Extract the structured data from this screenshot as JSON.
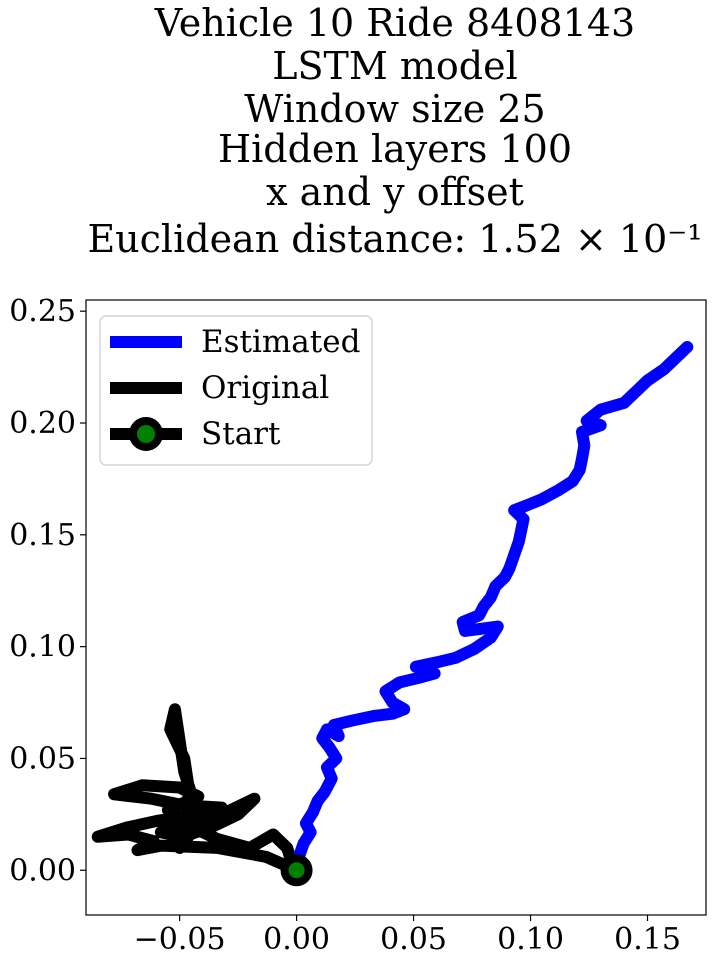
{
  "chart_data": {
    "type": "line",
    "title_lines": [
      "Vehicle 10 Ride 8408143",
      "LSTM model",
      "Window size 25",
      "Hidden layers 100",
      "x and y offset",
      "Euclidean distance: 1.52 × 10⁻¹"
    ],
    "xlabel": "",
    "ylabel": "",
    "xlim": [
      -0.09,
      0.175
    ],
    "ylim": [
      -0.02,
      0.255
    ],
    "x_ticks": [
      -0.05,
      0.0,
      0.05,
      0.1,
      0.15
    ],
    "x_tick_labels": [
      "−0.05",
      "0.00",
      "0.05",
      "0.10",
      "0.15"
    ],
    "y_ticks": [
      0.0,
      0.05,
      0.1,
      0.15,
      0.2,
      0.25
    ],
    "y_tick_labels": [
      "0.00",
      "0.05",
      "0.10",
      "0.15",
      "0.20",
      "0.25"
    ],
    "grid": false,
    "legend_position": "top-left",
    "series": [
      {
        "name": "Estimated",
        "color": "#0000ff",
        "points": [
          [
            0.0,
            0.0
          ],
          [
            0.001,
            0.006
          ],
          [
            0.003,
            0.012
          ],
          [
            0.006,
            0.017
          ],
          [
            0.004,
            0.021
          ],
          [
            0.007,
            0.026
          ],
          [
            0.009,
            0.031
          ],
          [
            0.012,
            0.035
          ],
          [
            0.015,
            0.041
          ],
          [
            0.013,
            0.046
          ],
          [
            0.017,
            0.05
          ],
          [
            0.014,
            0.055
          ],
          [
            0.011,
            0.059
          ],
          [
            0.013,
            0.063
          ],
          [
            0.018,
            0.06
          ],
          [
            0.016,
            0.065
          ],
          [
            0.024,
            0.067
          ],
          [
            0.033,
            0.069
          ],
          [
            0.041,
            0.07
          ],
          [
            0.046,
            0.072
          ],
          [
            0.041,
            0.075
          ],
          [
            0.038,
            0.08
          ],
          [
            0.044,
            0.084
          ],
          [
            0.052,
            0.086
          ],
          [
            0.059,
            0.088
          ],
          [
            0.051,
            0.091
          ],
          [
            0.06,
            0.093
          ],
          [
            0.068,
            0.095
          ],
          [
            0.076,
            0.099
          ],
          [
            0.083,
            0.104
          ],
          [
            0.086,
            0.109
          ],
          [
            0.072,
            0.107
          ],
          [
            0.071,
            0.111
          ],
          [
            0.078,
            0.114
          ],
          [
            0.08,
            0.118
          ],
          [
            0.083,
            0.122
          ],
          [
            0.085,
            0.127
          ],
          [
            0.089,
            0.131
          ],
          [
            0.091,
            0.135
          ],
          [
            0.093,
            0.141
          ],
          [
            0.095,
            0.147
          ],
          [
            0.096,
            0.152
          ],
          [
            0.097,
            0.157
          ],
          [
            0.093,
            0.161
          ],
          [
            0.098,
            0.163
          ],
          [
            0.105,
            0.166
          ],
          [
            0.112,
            0.17
          ],
          [
            0.118,
            0.174
          ],
          [
            0.121,
            0.179
          ],
          [
            0.122,
            0.184
          ],
          [
            0.123,
            0.19
          ],
          [
            0.122,
            0.196
          ],
          [
            0.13,
            0.199
          ],
          [
            0.124,
            0.201
          ],
          [
            0.13,
            0.206
          ],
          [
            0.14,
            0.209
          ],
          [
            0.145,
            0.214
          ],
          [
            0.15,
            0.219
          ],
          [
            0.157,
            0.224
          ],
          [
            0.162,
            0.229
          ],
          [
            0.167,
            0.234
          ]
        ]
      },
      {
        "name": "Original",
        "color": "#000000",
        "points": [
          [
            0.0,
            0.0
          ],
          [
            -0.013,
            0.006
          ],
          [
            -0.034,
            0.01
          ],
          [
            -0.058,
            0.011
          ],
          [
            -0.068,
            0.009
          ],
          [
            -0.061,
            0.013
          ],
          [
            -0.072,
            0.016
          ],
          [
            -0.085,
            0.015
          ],
          [
            -0.073,
            0.019
          ],
          [
            -0.06,
            0.022
          ],
          [
            -0.048,
            0.024
          ],
          [
            -0.041,
            0.02
          ],
          [
            -0.044,
            0.031
          ],
          [
            -0.048,
            0.044
          ],
          [
            -0.05,
            0.058
          ],
          [
            -0.052,
            0.072
          ],
          [
            -0.054,
            0.063
          ],
          [
            -0.048,
            0.05
          ],
          [
            -0.046,
            0.036
          ],
          [
            -0.047,
            0.022
          ],
          [
            -0.05,
            0.01
          ],
          [
            -0.044,
            0.018
          ],
          [
            -0.036,
            0.023
          ],
          [
            -0.028,
            0.027
          ],
          [
            -0.018,
            0.032
          ],
          [
            -0.025,
            0.025
          ],
          [
            -0.037,
            0.019
          ],
          [
            -0.049,
            0.015
          ],
          [
            -0.058,
            0.017
          ],
          [
            -0.045,
            0.024
          ],
          [
            -0.032,
            0.028
          ],
          [
            -0.048,
            0.029
          ],
          [
            -0.062,
            0.032
          ],
          [
            -0.078,
            0.034
          ],
          [
            -0.066,
            0.038
          ],
          [
            -0.05,
            0.037
          ],
          [
            -0.042,
            0.033
          ],
          [
            -0.055,
            0.027
          ],
          [
            -0.046,
            0.02
          ],
          [
            -0.034,
            0.014
          ],
          [
            -0.02,
            0.01
          ],
          [
            -0.01,
            0.016
          ],
          [
            -0.004,
            0.01
          ],
          [
            -0.002,
            0.003
          ],
          [
            0.0,
            0.0
          ]
        ]
      },
      {
        "name": "Start",
        "color": "#000000",
        "marker_face": "#008000",
        "points": [
          [
            0.0,
            0.0
          ]
        ]
      }
    ]
  }
}
